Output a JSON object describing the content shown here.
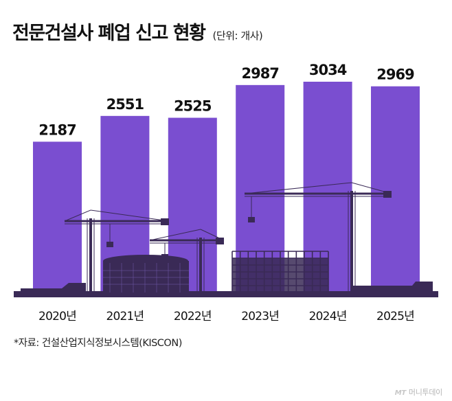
{
  "header": {
    "title": "전문건설사 폐업 신고 현황",
    "unit": "(단위: 개사)"
  },
  "chart_data": {
    "type": "bar",
    "title": "전문건설사 폐업 신고 현황",
    "unit": "(단위: 개사)",
    "categories": [
      "2020년",
      "2021년",
      "2022년",
      "2023년",
      "2024년",
      "2025년"
    ],
    "values": [
      2187,
      2551,
      2525,
      2987,
      3034,
      2969
    ],
    "value_labels": [
      "2187",
      "2551",
      "2525",
      "2987",
      "3034",
      "2969"
    ],
    "bar_color": "#7a4ed0",
    "silhouette_color": "#3a2a56",
    "ylim": [
      0,
      3034
    ],
    "grid": false,
    "legend": "none"
  },
  "footer": {
    "source": "*자료: 건설산업지식정보시스템(KISCON)",
    "logo_mark": "MT",
    "logo_text": "머니투데이"
  }
}
